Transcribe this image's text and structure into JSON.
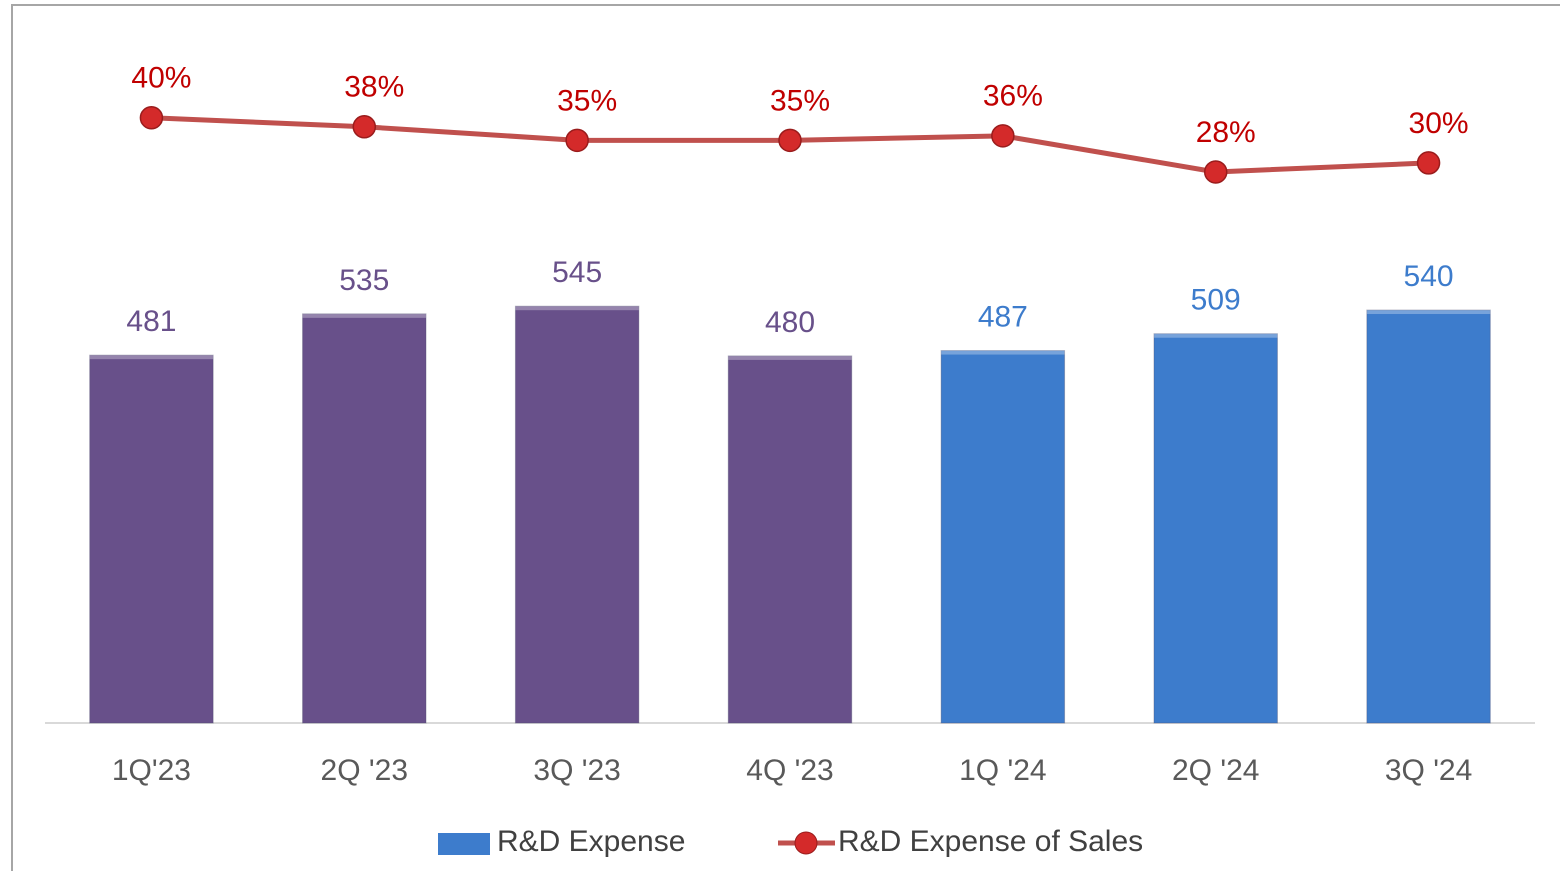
{
  "chart_data": {
    "type": "bar-line",
    "categories": [
      "1Q'23",
      "2Q '23",
      "3Q '23",
      "4Q '23",
      "1Q '24",
      "2Q '24",
      "3Q '24"
    ],
    "series": [
      {
        "name": "R&D Expense",
        "type": "bar",
        "color": "#3d7ccc",
        "colors": [
          "#68508a",
          "#68508a",
          "#68508a",
          "#68508a",
          "#3d7ccc",
          "#3d7ccc",
          "#3d7ccc"
        ],
        "values": [
          481,
          535,
          545,
          480,
          487,
          509,
          540
        ]
      },
      {
        "name": "R&D Expense of Sales",
        "type": "line",
        "axis": "y2",
        "color": "#c0504d",
        "label_color": "#c00000",
        "values": [
          40,
          38,
          35,
          35,
          36,
          28,
          30
        ],
        "value_labels": [
          "40%",
          "38%",
          "35%",
          "35%",
          "36%",
          "28%",
          "30%"
        ]
      }
    ],
    "ylim": [
      0,
      880
    ],
    "y2lim": [
      -94,
      55
    ],
    "legend": "bottom"
  }
}
